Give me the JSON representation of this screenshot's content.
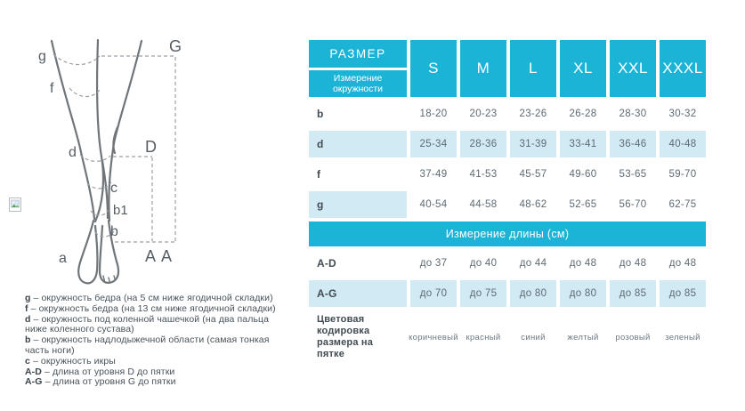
{
  "diagram": {
    "point_labels": {
      "g": "g",
      "f": "f",
      "d": "d",
      "c": "c",
      "b1": "b1",
      "b": "b",
      "a": "a",
      "G": "G",
      "D": "D",
      "A_left": "A",
      "A_right": "A"
    },
    "legend": [
      {
        "term": "g",
        "text": "– окружность бедра (на 5 см ниже ягодичной складки)"
      },
      {
        "term": "f",
        "text": "– окружность бедра (на 13 см ниже ягодичной складки)"
      },
      {
        "term": "d",
        "text": "– окружность под коленной чашечкой (на два пальца ниже коленного сустава)"
      },
      {
        "term": "b",
        "text": "– окружность надлодыжечной области (самая тонкая часть ноги)"
      },
      {
        "term": "c",
        "text": "– окружность икры"
      },
      {
        "term": "A-D",
        "text": "– длина от уровня D до пятки"
      },
      {
        "term": "A-G",
        "text": "– длина от уровня G до пятки"
      }
    ]
  },
  "table": {
    "corner_top": "РАЗМЕР",
    "corner_bottom": "Измерение окружности",
    "sizes": [
      "S",
      "M",
      "L",
      "XL",
      "XXL",
      "XXXL"
    ],
    "circumference_rows": [
      {
        "label": "b",
        "row_shade": "none",
        "values": [
          "18-20",
          "20-23",
          "23-26",
          "26-28",
          "28-30",
          "30-32"
        ]
      },
      {
        "label": "d",
        "row_shade": "full",
        "values": [
          "25-34",
          "28-36",
          "31-39",
          "33-41",
          "36-46",
          "40-48"
        ]
      },
      {
        "label": "f",
        "row_shade": "none",
        "values": [
          "37-49",
          "41-53",
          "45-57",
          "49-60",
          "53-65",
          "59-70"
        ]
      },
      {
        "label": "g",
        "row_shade": "label-only",
        "values": [
          "40-54",
          "44-58",
          "48-62",
          "52-65",
          "56-70",
          "62-75"
        ]
      }
    ],
    "length_section_title": "Измерение длины (см)",
    "length_rows": [
      {
        "label": "A-D",
        "row_shade": "none",
        "values": [
          "до 37",
          "до 40",
          "до 44",
          "до 48",
          "до 48",
          "до 48"
        ]
      },
      {
        "label": "A-G",
        "row_shade": "full",
        "values": [
          "до 70",
          "до 75",
          "до 80",
          "до 80",
          "до 85",
          "до 85"
        ]
      }
    ],
    "heel_color_row": {
      "label": "Цветовая кодировка размера на пятке",
      "values": [
        "коричневый",
        "красный",
        "синий",
        "желтый",
        "розовый",
        "зеленый"
      ]
    }
  },
  "colors": {
    "teal": "#1bb4d6",
    "light_blue": "#d2eaf4",
    "header_text": "#ffffff",
    "value_text": "#5d6a73",
    "label_text": "#414b52",
    "leg_stroke": "#70757a",
    "dash_stroke": "#9aa0a6"
  }
}
